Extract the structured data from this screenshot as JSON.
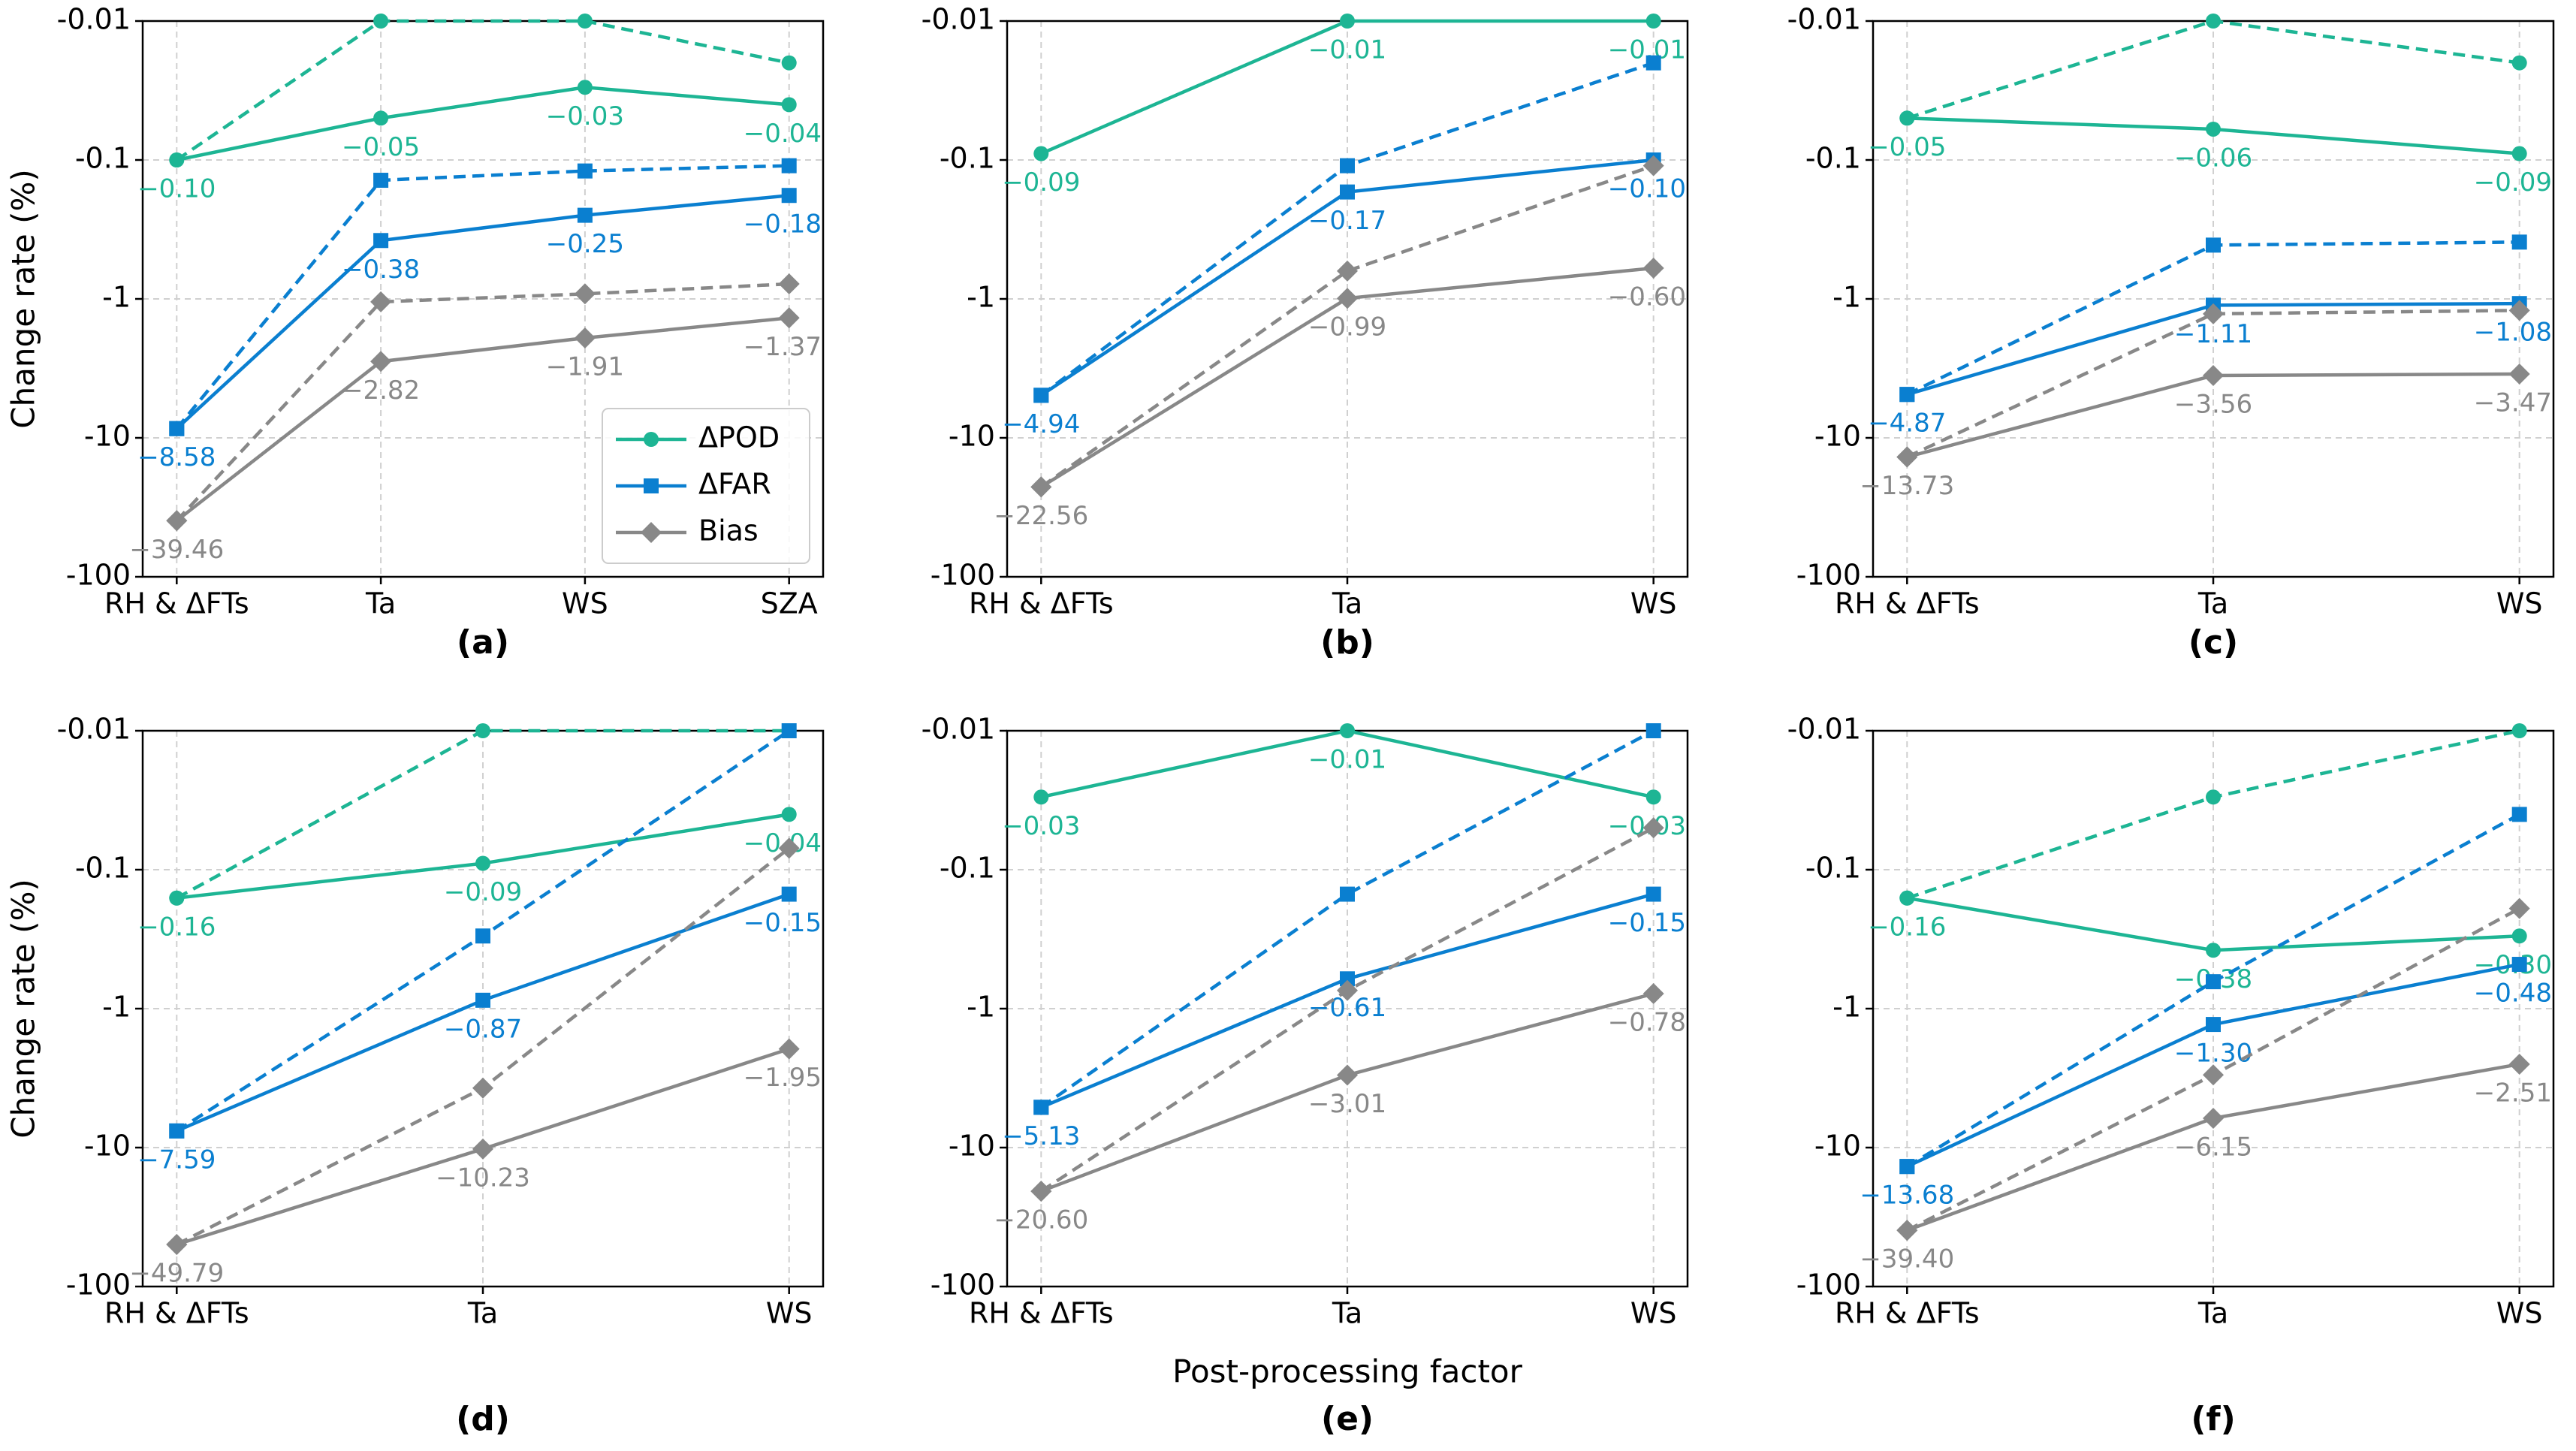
{
  "chart_data": [
    {
      "type": "line",
      "label": "(a)",
      "ylabel": "Change rate (%)",
      "yscale": "log",
      "grid": true,
      "legend": "lower right",
      "categories": [
        "RH & ΔFTs",
        "Ta",
        "WS",
        "SZA"
      ],
      "ylim": [
        -0.01,
        -100
      ],
      "yticks": [
        -0.01,
        -0.1,
        -1,
        -10,
        -100
      ],
      "series": [
        {
          "name": "ΔPOD",
          "color": "#1db594",
          "marker": "circle",
          "linestyle": "solid",
          "values": [
            -0.1,
            -0.05,
            -0.03,
            -0.04
          ],
          "value_labels": [
            "−0.10",
            "−0.05",
            "−0.03",
            "−0.04"
          ]
        },
        {
          "name": "ΔFAR",
          "color": "#0a7fd0",
          "marker": "square",
          "linestyle": "solid",
          "values": [
            -8.58,
            -0.38,
            -0.25,
            -0.18
          ],
          "value_labels": [
            "−8.58",
            "−0.38",
            "−0.25",
            "−0.18"
          ]
        },
        {
          "name": "Bias",
          "color": "#888888",
          "marker": "diamond",
          "linestyle": "solid",
          "values": [
            -39.46,
            -2.82,
            -1.91,
            -1.37
          ],
          "value_labels": [
            "−39.46",
            "−2.82",
            "−1.91",
            "−1.37"
          ]
        },
        {
          "color": "#1db594",
          "marker": "circle",
          "linestyle": "dashed",
          "values": [
            -0.1,
            -0.01,
            -0.01,
            -0.02
          ]
        },
        {
          "color": "#0a7fd0",
          "marker": "square",
          "linestyle": "dashed",
          "values": [
            -8.58,
            -0.14,
            -0.12,
            -0.11
          ]
        },
        {
          "color": "#888888",
          "marker": "diamond",
          "linestyle": "dashed",
          "values": [
            -39.46,
            -1.05,
            -0.92,
            -0.78
          ]
        }
      ]
    },
    {
      "type": "line",
      "label": "(b)",
      "yscale": "log",
      "grid": true,
      "categories": [
        "RH & ΔFTs",
        "Ta",
        "WS"
      ],
      "ylim": [
        -0.01,
        -100
      ],
      "yticks": [
        -0.01,
        -0.1,
        -1,
        -10,
        -100
      ],
      "series": [
        {
          "color": "#1db594",
          "marker": "circle",
          "linestyle": "solid",
          "values": [
            -0.09,
            -0.01,
            -0.01
          ],
          "value_labels": [
            "−0.09",
            "−0.01",
            "−0.01"
          ]
        },
        {
          "color": "#0a7fd0",
          "marker": "square",
          "linestyle": "solid",
          "values": [
            -4.94,
            -0.17,
            -0.1
          ],
          "value_labels": [
            "−4.94",
            "−0.17",
            "−0.10"
          ]
        },
        {
          "color": "#888888",
          "marker": "diamond",
          "linestyle": "solid",
          "values": [
            -22.56,
            -0.99,
            -0.6
          ],
          "value_labels": [
            "−22.56",
            "−0.99",
            "−0.60"
          ]
        },
        {
          "color": "#0a7fd0",
          "marker": "square",
          "linestyle": "dashed",
          "values": [
            -4.94,
            -0.11,
            -0.02
          ]
        },
        {
          "color": "#888888",
          "marker": "diamond",
          "linestyle": "dashed",
          "values": [
            -22.56,
            -0.63,
            -0.11
          ]
        }
      ]
    },
    {
      "type": "line",
      "label": "(c)",
      "yscale": "log",
      "grid": true,
      "categories": [
        "RH & ΔFTs",
        "Ta",
        "WS"
      ],
      "ylim": [
        -0.01,
        -100
      ],
      "yticks": [
        -0.01,
        -0.1,
        -1,
        -10,
        -100
      ],
      "series": [
        {
          "color": "#1db594",
          "marker": "circle",
          "linestyle": "solid",
          "values": [
            -0.05,
            -0.06,
            -0.09
          ],
          "value_labels": [
            "−0.05",
            "−0.06",
            "−0.09"
          ]
        },
        {
          "color": "#0a7fd0",
          "marker": "square",
          "linestyle": "solid",
          "values": [
            -4.87,
            -1.11,
            -1.08
          ],
          "value_labels": [
            "−4.87",
            "−1.11",
            "−1.08"
          ]
        },
        {
          "color": "#888888",
          "marker": "diamond",
          "linestyle": "solid",
          "values": [
            -13.73,
            -3.56,
            -3.47
          ],
          "value_labels": [
            "−13.73",
            "−3.56",
            "−3.47"
          ]
        },
        {
          "color": "#1db594",
          "marker": "circle",
          "linestyle": "dashed",
          "values": [
            -0.05,
            -0.01,
            -0.02
          ]
        },
        {
          "color": "#0a7fd0",
          "marker": "square",
          "linestyle": "dashed",
          "values": [
            -4.87,
            -0.41,
            -0.39
          ]
        },
        {
          "color": "#888888",
          "marker": "diamond",
          "linestyle": "dashed",
          "values": [
            -13.73,
            -1.28,
            -1.21
          ]
        }
      ]
    },
    {
      "type": "line",
      "label": "(d)",
      "ylabel": "Change rate (%)",
      "yscale": "log",
      "grid": true,
      "categories": [
        "RH & ΔFTs",
        "Ta",
        "WS"
      ],
      "ylim": [
        -0.01,
        -100
      ],
      "yticks": [
        -0.01,
        -0.1,
        -1,
        -10,
        -100
      ],
      "series": [
        {
          "color": "#1db594",
          "marker": "circle",
          "linestyle": "solid",
          "values": [
            -0.16,
            -0.09,
            -0.04
          ],
          "value_labels": [
            "−0.16",
            "−0.09",
            "−0.04"
          ]
        },
        {
          "color": "#0a7fd0",
          "marker": "square",
          "linestyle": "solid",
          "values": [
            -7.59,
            -0.87,
            -0.15
          ],
          "value_labels": [
            "−7.59",
            "−0.87",
            "−0.15"
          ]
        },
        {
          "color": "#888888",
          "marker": "diamond",
          "linestyle": "solid",
          "values": [
            -49.79,
            -10.23,
            -1.95
          ],
          "value_labels": [
            "−49.79",
            "−10.23",
            "−1.95"
          ]
        },
        {
          "color": "#1db594",
          "marker": "circle",
          "linestyle": "dashed",
          "values": [
            -0.16,
            -0.01,
            -0.01
          ]
        },
        {
          "color": "#0a7fd0",
          "marker": "square",
          "linestyle": "dashed",
          "values": [
            -7.59,
            -0.3,
            -0.01
          ]
        },
        {
          "color": "#888888",
          "marker": "diamond",
          "linestyle": "dashed",
          "values": [
            -49.79,
            -3.73,
            -0.07
          ]
        }
      ]
    },
    {
      "type": "line",
      "label": "(e)",
      "xlabel": "Post-processing factor",
      "yscale": "log",
      "grid": true,
      "categories": [
        "RH & ΔFTs",
        "Ta",
        "WS"
      ],
      "ylim": [
        -0.01,
        -100
      ],
      "yticks": [
        -0.01,
        -0.1,
        -1,
        -10,
        -100
      ],
      "series": [
        {
          "color": "#1db594",
          "marker": "circle",
          "linestyle": "solid",
          "values": [
            -0.03,
            -0.01,
            -0.03
          ],
          "value_labels": [
            "−0.03",
            "−0.01",
            "−0.03"
          ]
        },
        {
          "color": "#0a7fd0",
          "marker": "square",
          "linestyle": "solid",
          "values": [
            -5.13,
            -0.61,
            -0.15
          ],
          "value_labels": [
            "−5.13",
            "−0.61",
            "−0.15"
          ]
        },
        {
          "color": "#888888",
          "marker": "diamond",
          "linestyle": "solid",
          "values": [
            -20.6,
            -3.01,
            -0.78
          ],
          "value_labels": [
            "−20.60",
            "−3.01",
            "−0.78"
          ]
        },
        {
          "color": "#0a7fd0",
          "marker": "square",
          "linestyle": "dashed",
          "values": [
            -5.13,
            -0.15,
            -0.01
          ]
        },
        {
          "color": "#888888",
          "marker": "diamond",
          "linestyle": "dashed",
          "values": [
            -20.6,
            -0.74,
            -0.05
          ]
        }
      ]
    },
    {
      "type": "line",
      "label": "(f)",
      "yscale": "log",
      "grid": true,
      "categories": [
        "RH & ΔFTs",
        "Ta",
        "WS"
      ],
      "ylim": [
        -0.01,
        -100
      ],
      "yticks": [
        -0.01,
        -0.1,
        -1,
        -10,
        -100
      ],
      "series": [
        {
          "color": "#1db594",
          "marker": "circle",
          "linestyle": "solid",
          "values": [
            -0.16,
            -0.38,
            -0.3
          ],
          "value_labels": [
            "−0.16",
            "−0.38",
            "−0.30"
          ]
        },
        {
          "color": "#0a7fd0",
          "marker": "square",
          "linestyle": "solid",
          "values": [
            -13.68,
            -1.3,
            -0.48
          ],
          "value_labels": [
            "−13.68",
            "−1.30",
            "−0.48"
          ]
        },
        {
          "color": "#888888",
          "marker": "diamond",
          "linestyle": "solid",
          "values": [
            -39.4,
            -6.15,
            -2.51
          ],
          "value_labels": [
            "−39.40",
            "−6.15",
            "−2.51"
          ]
        },
        {
          "color": "#1db594",
          "marker": "circle",
          "linestyle": "dashed",
          "values": [
            -0.16,
            -0.03,
            -0.01
          ]
        },
        {
          "color": "#0a7fd0",
          "marker": "square",
          "linestyle": "dashed",
          "values": [
            -13.68,
            -0.64,
            -0.04
          ]
        },
        {
          "color": "#888888",
          "marker": "diamond",
          "linestyle": "dashed",
          "values": [
            -39.4,
            -3.0,
            -0.19
          ]
        }
      ]
    }
  ]
}
